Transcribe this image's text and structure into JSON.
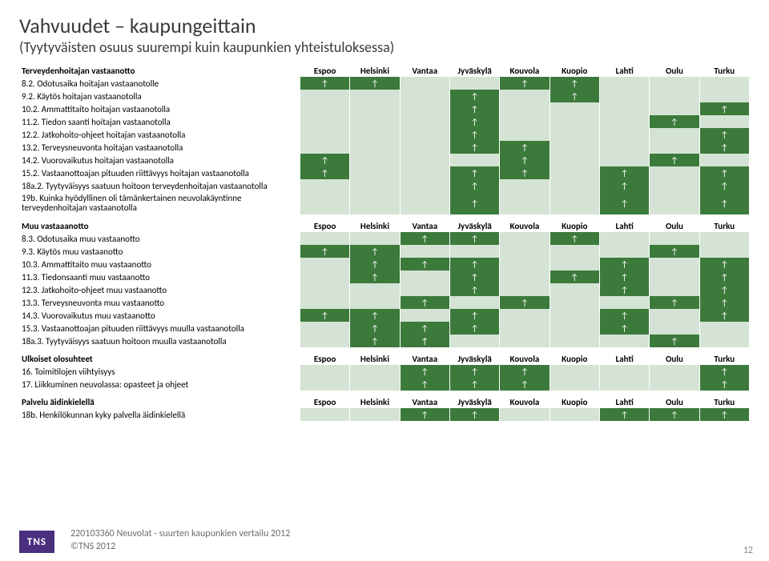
{
  "title": "Vahvuudet – kaupungeittain",
  "subtitle": "(Tyytyväisten osuus suurempi kuin kaupunkien yhteistuloksessa)",
  "arrow": "↑",
  "cities": [
    "Espoo",
    "Helsinki",
    "Vantaa",
    "Jyväskylä",
    "Kouvola",
    "Kuopio",
    "Lahti",
    "Oulu",
    "Turku"
  ],
  "on_bg": "#3b7a3b",
  "off_bg": "#d4e3d4",
  "sections": [
    {
      "header": "Terveydenhoitajan vastaanotto",
      "rows": [
        {
          "label": "8.2. Odotusaika hoitajan vastaanotolle",
          "cells": [
            1,
            1,
            0,
            0,
            1,
            1,
            0,
            0,
            0
          ]
        },
        {
          "label": "9.2. Käytös hoitajan vastaanotolla",
          "cells": [
            0,
            0,
            0,
            1,
            0,
            1,
            0,
            0,
            0
          ]
        },
        {
          "label": "10.2. Ammattitaito hoitajan vastaanotolla",
          "cells": [
            0,
            0,
            0,
            1,
            0,
            0,
            0,
            0,
            1
          ]
        },
        {
          "label": "11.2. Tiedon saanti hoitajan vastaanotolla",
          "cells": [
            0,
            0,
            0,
            1,
            0,
            0,
            0,
            1,
            0
          ]
        },
        {
          "label": "12.2. Jatkohoito-ohjeet hoitajan vastaanotolla",
          "cells": [
            0,
            0,
            0,
            1,
            0,
            0,
            0,
            0,
            1
          ]
        },
        {
          "label": "13.2. Terveysneuvonta hoitajan vastaanotolla",
          "cells": [
            0,
            0,
            0,
            1,
            1,
            0,
            0,
            0,
            1
          ]
        },
        {
          "label": "14.2. Vuorovaikutus hoitajan vastaanotolla",
          "cells": [
            1,
            0,
            0,
            0,
            1,
            0,
            0,
            1,
            0
          ]
        },
        {
          "label": "15.2. Vastaanottoajan pituuden riittävyys hoitajan vastaanotolla",
          "cells": [
            1,
            0,
            0,
            1,
            1,
            0,
            1,
            0,
            1
          ]
        },
        {
          "label": "18a.2. Tyytyväisyys saatuun hoitoon terveydenhoitajan vastaanotolla",
          "cells": [
            0,
            0,
            0,
            1,
            0,
            0,
            1,
            0,
            1
          ]
        },
        {
          "label": "19b. Kuinka hyödyllinen oli tämänkertainen neuvolakäyntinne terveydenhoitajan vastaanotolla",
          "cells": [
            0,
            0,
            0,
            1,
            0,
            0,
            1,
            0,
            1
          ]
        }
      ]
    },
    {
      "header": "Muu vastaaanotto",
      "rows": [
        {
          "label": "8.3. Odotusaika muu vastaanotto",
          "cells": [
            0,
            0,
            1,
            1,
            0,
            1,
            0,
            0,
            0
          ]
        },
        {
          "label": "9.3. Käytös muu vastaanotto",
          "cells": [
            1,
            1,
            0,
            0,
            0,
            0,
            0,
            1,
            0
          ]
        },
        {
          "label": "10.3. Ammattitaito muu vastaanotto",
          "cells": [
            0,
            1,
            1,
            1,
            0,
            0,
            1,
            0,
            1
          ]
        },
        {
          "label": "11.3. Tiedonsaanti muu vastaanotto",
          "cells": [
            0,
            1,
            0,
            1,
            0,
            1,
            1,
            0,
            1
          ]
        },
        {
          "label": "12.3. Jatkohoito-ohjeet muu vastaanotto",
          "cells": [
            0,
            0,
            0,
            1,
            0,
            0,
            1,
            0,
            1
          ]
        },
        {
          "label": "13.3. Terveysneuvonta muu vastaanotto",
          "cells": [
            0,
            0,
            1,
            0,
            1,
            0,
            0,
            1,
            1
          ]
        },
        {
          "label": "14.3. Vuorovaikutus muu vastaanotto",
          "cells": [
            1,
            1,
            0,
            1,
            0,
            0,
            1,
            0,
            1
          ]
        },
        {
          "label": "15.3. Vastaanottoajan pituuden riittävyys muulla vastaanotolla",
          "cells": [
            0,
            1,
            1,
            1,
            0,
            0,
            1,
            0,
            0
          ]
        },
        {
          "label": "18a.3. Tyytyväisyys saatuun hoitoon muulla vastaanotolla",
          "cells": [
            0,
            1,
            1,
            0,
            0,
            0,
            0,
            1,
            0
          ]
        }
      ]
    },
    {
      "header": "Ulkoiset olosuhteet",
      "rows": [
        {
          "label": "16. Toimitilojen viihtyisyys",
          "cells": [
            0,
            0,
            1,
            1,
            1,
            0,
            0,
            0,
            1
          ]
        },
        {
          "label": "17. Liikkuminen neuvolassa: opasteet ja ohjeet",
          "cells": [
            0,
            0,
            1,
            1,
            1,
            0,
            0,
            0,
            1
          ]
        }
      ]
    },
    {
      "header": "Palvelu äidinkielellä",
      "rows": [
        {
          "label": "18b. Henkilökunnan kyky palvella äidinkielellä",
          "cells": [
            0,
            0,
            1,
            1,
            0,
            0,
            1,
            1,
            1
          ]
        }
      ]
    }
  ],
  "footer_line1": "220103360 Neuvolat - suurten kaupunkien vertailu 2012",
  "footer_line2": "©TNS 2012",
  "logo": "TNS",
  "page_number": "12"
}
